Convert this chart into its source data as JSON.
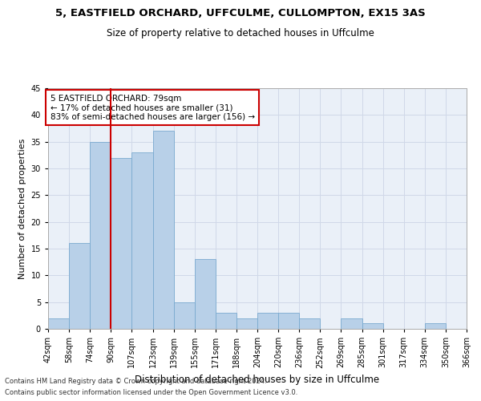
{
  "title1": "5, EASTFIELD ORCHARD, UFFCULME, CULLOMPTON, EX15 3AS",
  "title2": "Size of property relative to detached houses in Uffculme",
  "xlabel": "Distribution of detached houses by size in Uffculme",
  "ylabel": "Number of detached properties",
  "footnote1": "Contains HM Land Registry data © Crown copyright and database right 2024.",
  "footnote2": "Contains public sector information licensed under the Open Government Licence v3.0.",
  "bar_values": [
    2,
    16,
    35,
    32,
    33,
    37,
    5,
    13,
    3,
    2,
    3,
    3,
    2,
    0,
    2,
    1,
    0,
    0,
    1,
    0
  ],
  "bin_labels": [
    "42sqm",
    "58sqm",
    "74sqm",
    "90sqm",
    "107sqm",
    "123sqm",
    "139sqm",
    "155sqm",
    "171sqm",
    "188sqm",
    "204sqm",
    "220sqm",
    "236sqm",
    "252sqm",
    "269sqm",
    "285sqm",
    "301sqm",
    "317sqm",
    "334sqm",
    "350sqm",
    "366sqm"
  ],
  "bar_color": "#b8d0e8",
  "bar_edge_color": "#7aaacf",
  "grid_color": "#d0d8e8",
  "background_color": "#eaf0f8",
  "red_line_color": "#cc0000",
  "annotation_box_text": "5 EASTFIELD ORCHARD: 79sqm\n← 17% of detached houses are smaller (31)\n83% of semi-detached houses are larger (156) →",
  "annotation_box_color": "#cc0000",
  "ylim": [
    0,
    45
  ],
  "yticks": [
    0,
    5,
    10,
    15,
    20,
    25,
    30,
    35,
    40,
    45
  ],
  "title1_fontsize": 9.5,
  "title2_fontsize": 8.5,
  "xlabel_fontsize": 8.5,
  "ylabel_fontsize": 8,
  "tick_fontsize": 7,
  "annot_fontsize": 7.5
}
